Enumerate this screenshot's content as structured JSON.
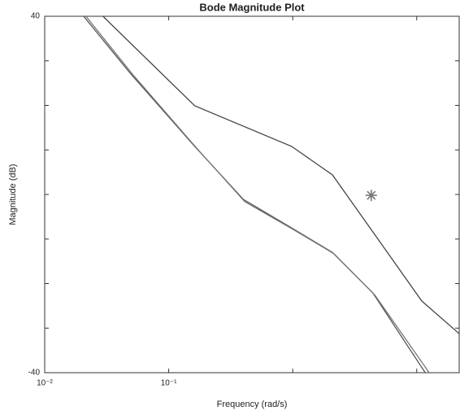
{
  "chart_data": {
    "type": "line",
    "title": "Bode Magnitude Plot",
    "xlabel": "Frequency (rad/s)",
    "ylabel": "Magnitude (dB)",
    "xscale": "log",
    "xlim": [
      0.01,
      22
    ],
    "xticks": [
      {
        "value": 0.01,
        "label": "10⁻²"
      },
      {
        "value": 0.1,
        "label": "10⁻¹"
      }
    ],
    "xminorticks": [
      1,
      10
    ],
    "ylim": [
      -40,
      40
    ],
    "yticks": [
      -40,
      40
    ],
    "yminorticks": [
      -30,
      -20,
      -10,
      0,
      10,
      20,
      30
    ],
    "series": [
      {
        "color": "#444444",
        "x": [
          0.0295,
          0.162,
          0.98,
          2.09,
          4.43,
          10.97,
          21.9
        ],
        "values": [
          40,
          19.9,
          10.8,
          4.4,
          -8.4,
          -23.9,
          -31.2
        ]
      },
      {
        "color": "#555555",
        "x": [
          0.0206,
          0.049,
          0.162,
          0.4,
          0.98,
          2.09,
          4.43,
          11.7
        ],
        "values": [
          40,
          27.2,
          10.8,
          -1.1,
          -7.5,
          -13,
          -22.1,
          -40
        ]
      },
      {
        "color": "#777777",
        "x": [
          0.0215,
          0.051,
          0.168,
          0.41,
          1.0,
          2.15,
          4.6,
          12.6
        ],
        "values": [
          40,
          27.0,
          10.4,
          -1.6,
          -7.8,
          -13.3,
          -22.6,
          -40
        ]
      }
    ],
    "markers": {
      "type": "scatter",
      "color": "#777777",
      "x": [
        4.3
      ],
      "values": [
        -0.2
      ]
    }
  }
}
